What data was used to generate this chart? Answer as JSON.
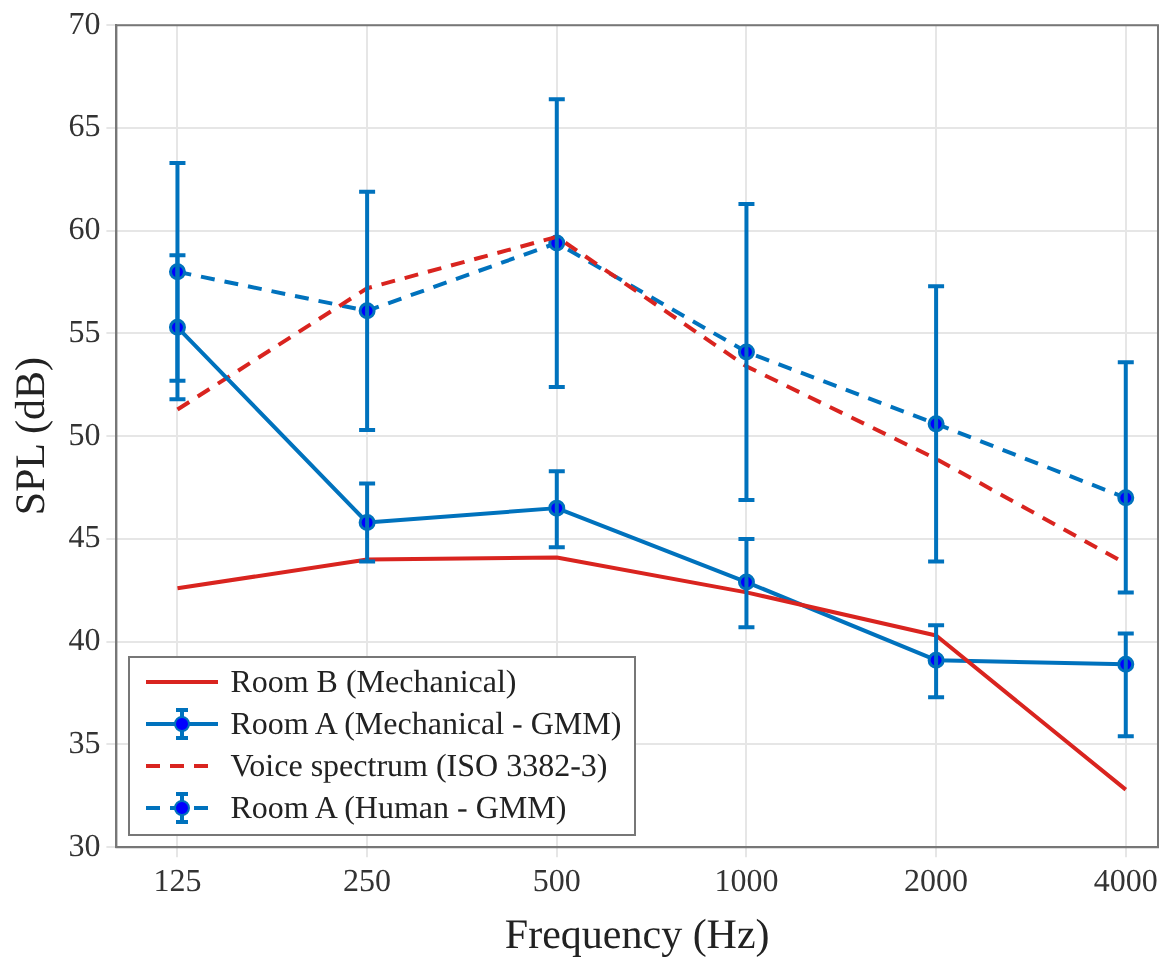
{
  "chart_data": {
    "type": "line",
    "xlabel": "Frequency (Hz)",
    "ylabel": "SPL (dB)",
    "log": "x",
    "x": [
      125,
      250,
      500,
      1000,
      2000,
      4000
    ],
    "xlim": [
      100,
      4500
    ],
    "xticks": [
      125,
      250,
      500,
      1000,
      2000,
      4000
    ],
    "ylim": [
      30,
      70
    ],
    "yticks": [
      30,
      35,
      40,
      45,
      50,
      55,
      60,
      65,
      70
    ],
    "grid": true,
    "legend": "bottom left",
    "series": [
      {
        "name": "Room B (Mechanical)",
        "color": "#d9241f",
        "line_style": "solid",
        "marker": "none",
        "values": [
          42.6,
          44.0,
          44.1,
          42.4,
          40.3,
          32.8
        ]
      },
      {
        "name": "Room A (Mechanical - GMM)",
        "color": "#0072bd",
        "line_style": "solid",
        "marker": "circle",
        "values": [
          55.3,
          45.8,
          46.5,
          42.9,
          39.1,
          38.9
        ],
        "errors": [
          [
            52.7,
            58.8
          ],
          [
            43.9,
            47.7
          ],
          [
            44.6,
            48.3
          ],
          [
            40.7,
            45.0
          ],
          [
            37.3,
            40.8
          ],
          [
            35.4,
            40.4
          ]
        ]
      },
      {
        "name": "Voice spectrum (ISO 3382-3)",
        "color": "#d9241f",
        "line_style": "dashed",
        "marker": "none",
        "values": [
          51.3,
          57.2,
          59.7,
          53.4,
          48.9,
          43.8
        ]
      },
      {
        "name": "Room A (Human - GMM)",
        "color": "#0072bd",
        "line_style": "dashed",
        "marker": "circle",
        "values": [
          58.0,
          56.1,
          59.4,
          54.1,
          50.6,
          47.0
        ],
        "errors": [
          [
            51.8,
            63.3
          ],
          [
            50.3,
            61.9
          ],
          [
            52.4,
            66.4
          ],
          [
            46.9,
            61.3
          ],
          [
            43.9,
            57.3
          ],
          [
            42.4,
            53.6
          ]
        ]
      }
    ]
  }
}
